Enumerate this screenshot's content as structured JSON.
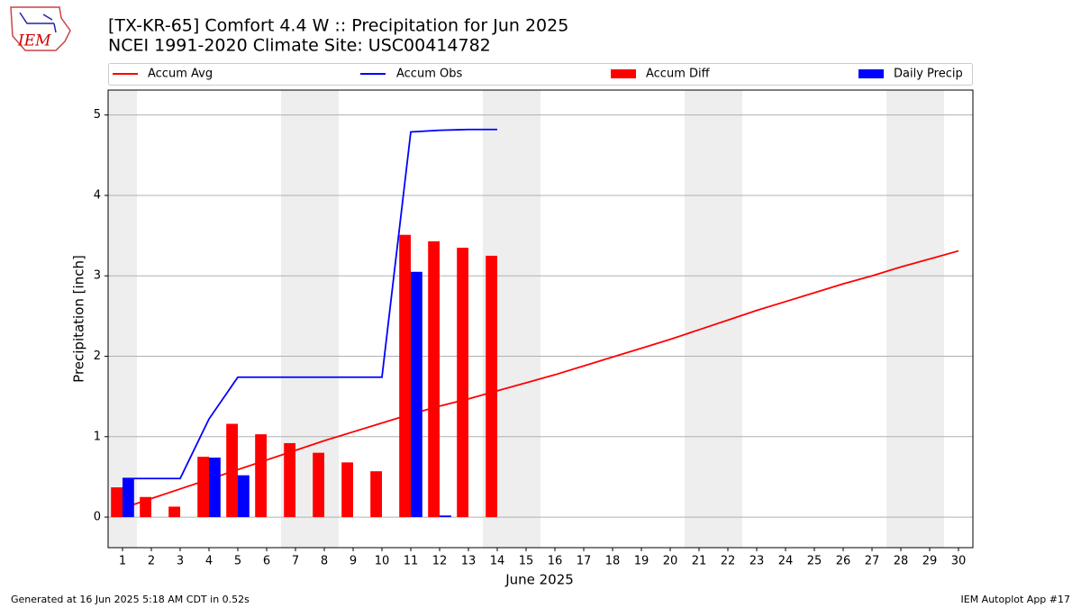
{
  "chart_data": {
    "type": "accum_precip",
    "title": "[TX-KR-65] Comfort 4.4 W :: Precipitation for Jun 2025",
    "subtitle": "NCEI 1991-2020 Climate Site: USC00414782",
    "logo_text": "IEM",
    "x_label": "June 2025",
    "y_label": "Precipitation [inch]",
    "footer_left": "Generated at 16 Jun 2025 5:18 AM CDT in 0.52s",
    "footer_right": "IEM Autoplot App #17",
    "x": [
      1,
      2,
      3,
      4,
      5,
      6,
      7,
      8,
      9,
      10,
      11,
      12,
      13,
      14,
      15,
      16,
      17,
      18,
      19,
      20,
      21,
      22,
      23,
      24,
      25,
      26,
      27,
      28,
      29,
      30
    ],
    "shaded_days": [
      1,
      7,
      8,
      14,
      15,
      21,
      22,
      28,
      29
    ],
    "series": [
      {
        "name": "Accum Avg",
        "kind": "line",
        "color": "#ff0000",
        "values": [
          0.11,
          0.23,
          0.35,
          0.47,
          0.59,
          0.71,
          0.83,
          0.95,
          1.06,
          1.17,
          1.28,
          1.38,
          1.47,
          1.57,
          1.67,
          1.77,
          1.88,
          1.99,
          2.1,
          2.21,
          2.33,
          2.45,
          2.57,
          2.68,
          2.79,
          2.9,
          3.0,
          3.11,
          3.21,
          3.31
        ]
      },
      {
        "name": "Accum Obs",
        "kind": "line",
        "color": "#0000ff",
        "values": [
          0.48,
          0.48,
          0.48,
          1.22,
          1.74,
          1.74,
          1.74,
          1.74,
          1.74,
          1.74,
          4.79,
          4.81,
          4.82,
          4.82,
          null,
          null,
          null,
          null,
          null,
          null,
          null,
          null,
          null,
          null,
          null,
          null,
          null,
          null,
          null,
          null
        ]
      },
      {
        "name": "Accum Diff",
        "kind": "bar",
        "color": "#ff0000",
        "values": [
          0.37,
          0.25,
          0.13,
          0.75,
          1.16,
          1.03,
          0.92,
          0.8,
          0.68,
          0.57,
          3.51,
          3.43,
          3.35,
          3.25,
          null,
          null,
          null,
          null,
          null,
          null,
          null,
          null,
          null,
          null,
          null,
          null,
          null,
          null,
          null,
          null
        ]
      },
      {
        "name": "Daily Precip",
        "kind": "bar",
        "color": "#0000ff",
        "values": [
          0.48,
          0,
          0,
          0.74,
          0.52,
          0,
          0,
          0,
          0,
          0,
          3.05,
          0.02,
          0,
          0,
          null,
          null,
          null,
          null,
          null,
          null,
          null,
          null,
          null,
          null,
          null,
          null,
          null,
          null,
          null,
          null
        ]
      }
    ],
    "xlim": [
      0.5,
      30.5
    ],
    "xticks": [
      1,
      2,
      3,
      4,
      5,
      6,
      7,
      8,
      9,
      10,
      11,
      12,
      13,
      14,
      15,
      16,
      17,
      18,
      19,
      20,
      21,
      22,
      23,
      24,
      25,
      26,
      27,
      28,
      29,
      30
    ],
    "ylim": [
      -0.38,
      5.31
    ],
    "yticks": [
      0,
      1,
      2,
      3,
      4,
      5
    ],
    "grid": true
  }
}
